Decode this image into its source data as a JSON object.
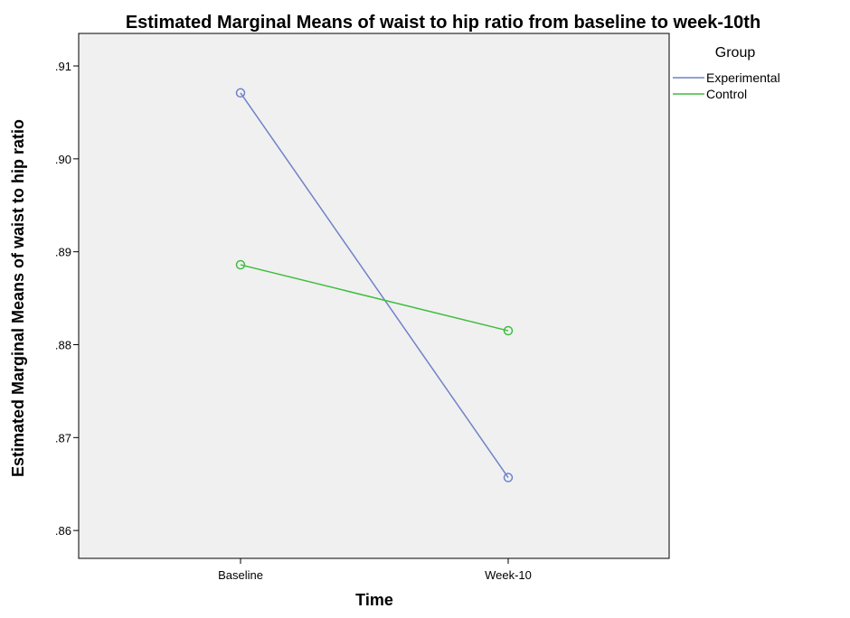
{
  "chart_data": {
    "type": "line",
    "title": "Estimated Marginal Means of waist to hip ratio from baseline to week-10th",
    "xlabel": "Time",
    "ylabel": "Estimated Marginal Means of waist to hip ratio",
    "categories": [
      "Baseline",
      "Week-10"
    ],
    "ylim": [
      0.857,
      0.9135
    ],
    "yticks": [
      0.86,
      0.87,
      0.88,
      0.89,
      0.9,
      0.91
    ],
    "ytick_labels": [
      ".86",
      ".87",
      ".88",
      ".89",
      ".90",
      ".91"
    ],
    "grid": false,
    "legend_title": "Group",
    "legend_position": "top-right-outside",
    "background": "#f0f0f0",
    "series": [
      {
        "name": "Experimental",
        "color": "#6f82c9",
        "values": [
          0.9071,
          0.8657
        ]
      },
      {
        "name": "Control",
        "color": "#3dbd3d",
        "values": [
          0.8886,
          0.8815
        ]
      }
    ]
  }
}
